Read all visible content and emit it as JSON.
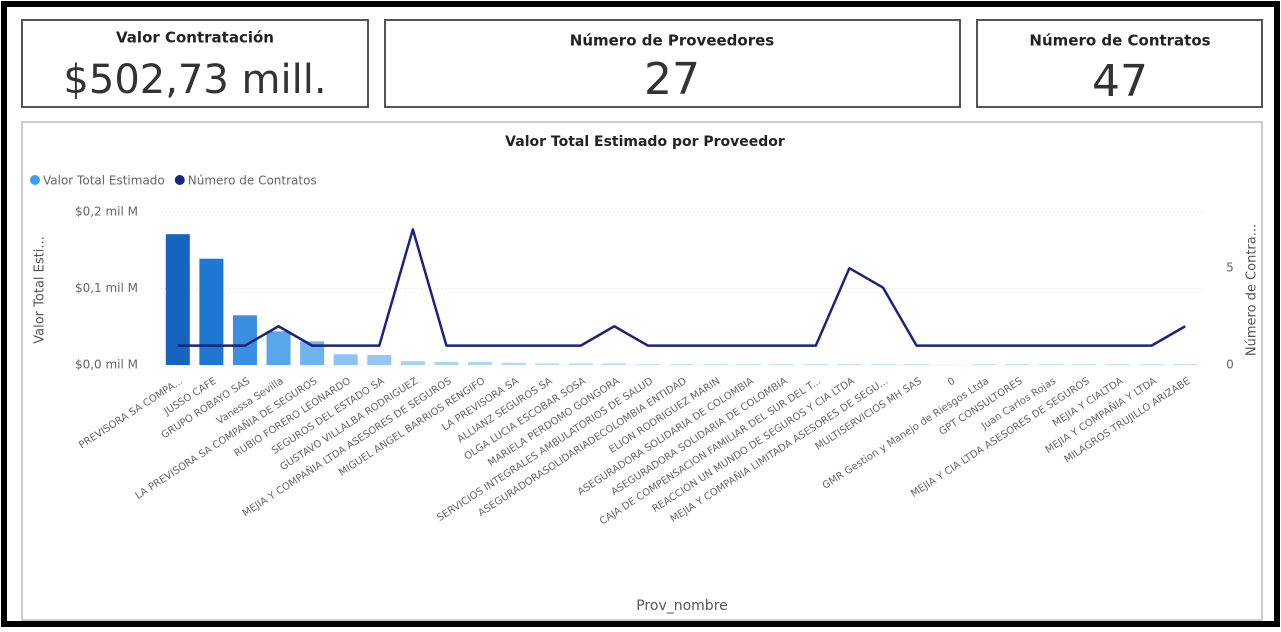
{
  "cards": [
    {
      "title": "Valor Contratación",
      "value": "$502,73 mill."
    },
    {
      "title": "Número de Proveedores",
      "value": "27"
    },
    {
      "title": "Número de Contratos",
      "value": "47"
    }
  ],
  "chart_data": {
    "type": "bar_line",
    "title": "Valor Total Estimado por Proveedor",
    "x_label": "Prov_nombre",
    "y_label": "Valor Total Esti...",
    "y2_label": "Número de Contra...",
    "categories": [
      "PREVISORA SA COMPA...",
      "JUSSO CAFE",
      "GRUPO ROBAYO SAS",
      "Vanessa Sevilla",
      "LA PREVISORA SA COMPAÑIA DE SEGUROS",
      "RUBIO FORERO LEONARDO",
      "SEGUROS DEL ESTADO SA",
      "GUSTAVO VILLALBA RODRIGUEZ",
      "MEJIA Y COMPAÑIA LTDA ASESORES DE SEGUROS",
      "MIGUEL ANGEL BARRIOS RENGIFO",
      "LA PREVISORA SA",
      "ALLIANZ SEGUROS SA",
      "OLGA LUCIA ESCOBAR SOSA",
      "MARIELA PERDOMO GONGORA",
      "SERVICIOS INTEGRALES AMBULATORIOS DE SALUD",
      "ASEGURADORASOLIDARIADECOLOMBIA ENTIDAD",
      "ELION RODRIGUEZ MARIN",
      "ASEGURADORA SOLIDARIA DE COLOMBIA",
      "ASEGURADORA SOLIDARIA DE COLOMBIA",
      "CAJA DE COMPENSACION FAMILIAR DEL SUR DEL T...",
      "REACCION UN MUNDO DE SEGUROS Y CIA LTDA",
      "MEJIA Y COMPAÑIA LIMITADA ASESORES DE SEGU...",
      "MULTISERVICIOS MH SAS",
      "0",
      "GMR Gestion y Manejo de Riesgos Ltda",
      "GPT CONSULTORES",
      "Juan Carlos Rojas",
      "MEJIA Y CIA LTDA ASESORES DE SEGUROS",
      "MEJIA Y CIALTDA",
      "MEJIA Y COMPAÑIA Y LTDA",
      "MILAGROS TRUJILLO ARIZABE"
    ],
    "series": [
      {
        "name": "Valor Total Estimado",
        "color": "#3aa0f3",
        "type": "bar",
        "colors": [
          "#1565c0",
          "#1e78d2",
          "#3a8fe0",
          "#5aa6ea",
          "#6fb3ef",
          "#8cc3f3",
          "#94c7f4",
          "#a6d0f6",
          "#aad3f6",
          "#aed5f7",
          "#b5d8f7",
          "#b5d8f7",
          "#b5d8f7",
          "#b5d8f7",
          "#b5d8f7",
          "#b5d8f7",
          "#b5d8f7",
          "#b5d8f7",
          "#b5d8f7",
          "#b5d8f7",
          "#b5d8f7",
          "#b5d8f7",
          "#b5d8f7",
          "#b5d8f7",
          "#b5d8f7",
          "#b5d8f7",
          "#b5d8f7",
          "#b5d8f7",
          "#b5d8f7",
          "#b5d8f7",
          "#b5d8f7"
        ],
        "values": [
          0.171,
          0.139,
          0.065,
          0.044,
          0.031,
          0.014,
          0.013,
          0.005,
          0.004,
          0.004,
          0.003,
          0.002,
          0.002,
          0.002,
          0.001,
          0.001,
          0.001,
          0.001,
          0.001,
          0.001,
          0.001,
          0.001,
          0.001,
          0,
          0.001,
          0.001,
          0.001,
          0.001,
          0.001,
          0.001,
          0.001
        ]
      },
      {
        "name": "Número de Contratos",
        "color": "#1a237e",
        "type": "line",
        "axis": "y2",
        "values": [
          1,
          1,
          1,
          2,
          1,
          1,
          1,
          7,
          1,
          1,
          1,
          1,
          1,
          2,
          1,
          1,
          1,
          1,
          1,
          1,
          5,
          4,
          1,
          1,
          1,
          1,
          1,
          1,
          1,
          1,
          2
        ]
      }
    ],
    "ylim": [
      0,
      0.2
    ],
    "yticks": [
      {
        "value": 0,
        "label": "$0,0 mil M"
      },
      {
        "value": 0.1,
        "label": "$0,1 mil M"
      },
      {
        "value": 0.2,
        "label": "$0,2 mil M"
      }
    ],
    "y2lim": [
      0,
      7.9
    ],
    "y2ticks": [
      0,
      5
    ],
    "grid": true,
    "legend": "top-left"
  }
}
